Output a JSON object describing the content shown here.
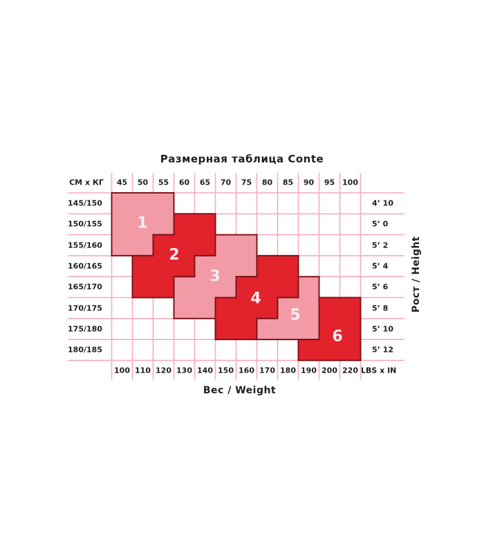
{
  "colors": {
    "background": "#ffffff",
    "grid_line": "#f6acbb",
    "block_border": "#7d1219",
    "pink": "#f29ba7",
    "red": "#e2232c",
    "label_text": "#1e1e1e",
    "number_text": "#f9ecee"
  },
  "chart_data": {
    "type": "heatmap",
    "title": "Размерная таблица Conte",
    "xlabel": "Вес / Weight",
    "ylabel": "Рост / Height",
    "top_left_unit": "СМ x КГ",
    "bottom_right_unit": "LBS x IN",
    "x_ticks_top_kg": [
      "45",
      "50",
      "55",
      "60",
      "65",
      "70",
      "75",
      "80",
      "85",
      "90",
      "95",
      "100"
    ],
    "x_ticks_bottom_lbs": [
      "100",
      "110",
      "120",
      "130",
      "140",
      "150",
      "160",
      "170",
      "180",
      "190",
      "200",
      "220"
    ],
    "y_ticks_left_cm": [
      "145/150",
      "150/155",
      "155/160",
      "160/165",
      "165/170",
      "170/175",
      "175/180",
      "180/185"
    ],
    "y_ticks_right_ftin": [
      "4’ 10",
      "5’ 0",
      "5’ 2",
      "5’ 4",
      "5’ 6",
      "5’ 8",
      "5’ 10",
      "5’ 12"
    ],
    "grid": true,
    "legend_position": "none",
    "sizes": [
      {
        "label": "1",
        "fill": "pink",
        "cells": [
          {
            "row": 0,
            "col_start": 0,
            "col_end": 2,
            "height_cm": "145/150",
            "kg": "45–55"
          },
          {
            "row": 1,
            "col_start": 0,
            "col_end": 2,
            "height_cm": "150/155",
            "kg": "45–55"
          },
          {
            "row": 2,
            "col_start": 0,
            "col_end": 1,
            "height_cm": "155/160",
            "kg": "45–50"
          }
        ]
      },
      {
        "label": "2",
        "fill": "red",
        "cells": [
          {
            "row": 1,
            "col_start": 3,
            "col_end": 4,
            "height_cm": "150/155",
            "kg": "60–65"
          },
          {
            "row": 2,
            "col_start": 2,
            "col_end": 4,
            "height_cm": "155/160",
            "kg": "55–65"
          },
          {
            "row": 3,
            "col_start": 1,
            "col_end": 3,
            "height_cm": "160/165",
            "kg": "50–60"
          },
          {
            "row": 4,
            "col_start": 1,
            "col_end": 2,
            "height_cm": "165/170",
            "kg": "50–55"
          }
        ]
      },
      {
        "label": "3",
        "fill": "pink",
        "cells": [
          {
            "row": 2,
            "col_start": 5,
            "col_end": 6,
            "height_cm": "155/160",
            "kg": "70–75"
          },
          {
            "row": 3,
            "col_start": 4,
            "col_end": 6,
            "height_cm": "160/165",
            "kg": "65–75"
          },
          {
            "row": 4,
            "col_start": 3,
            "col_end": 5,
            "height_cm": "165/170",
            "kg": "60–70"
          },
          {
            "row": 5,
            "col_start": 3,
            "col_end": 4,
            "height_cm": "170/175",
            "kg": "60–65"
          }
        ]
      },
      {
        "label": "4",
        "fill": "red",
        "cells": [
          {
            "row": 3,
            "col_start": 7,
            "col_end": 8,
            "height_cm": "160/165",
            "kg": "80–85"
          },
          {
            "row": 4,
            "col_start": 6,
            "col_end": 8,
            "height_cm": "165/170",
            "kg": "75–85"
          },
          {
            "row": 5,
            "col_start": 5,
            "col_end": 7,
            "height_cm": "170/175",
            "kg": "70–80"
          },
          {
            "row": 6,
            "col_start": 5,
            "col_end": 6,
            "height_cm": "175/180",
            "kg": "70–75"
          }
        ]
      },
      {
        "label": "5",
        "fill": "pink",
        "cells": [
          {
            "row": 4,
            "col_start": 9,
            "col_end": 9,
            "height_cm": "165/170",
            "kg": "90"
          },
          {
            "row": 5,
            "col_start": 8,
            "col_end": 9,
            "height_cm": "170/175",
            "kg": "85–90"
          },
          {
            "row": 6,
            "col_start": 7,
            "col_end": 9,
            "height_cm": "175/180",
            "kg": "80–90"
          }
        ]
      },
      {
        "label": "6",
        "fill": "red",
        "cells": [
          {
            "row": 5,
            "col_start": 10,
            "col_end": 11,
            "height_cm": "170/175",
            "kg": "95–100"
          },
          {
            "row": 6,
            "col_start": 10,
            "col_end": 11,
            "height_cm": "175/180",
            "kg": "95–100"
          },
          {
            "row": 7,
            "col_start": 9,
            "col_end": 11,
            "height_cm": "180/185",
            "kg": "90–100"
          }
        ]
      }
    ]
  }
}
